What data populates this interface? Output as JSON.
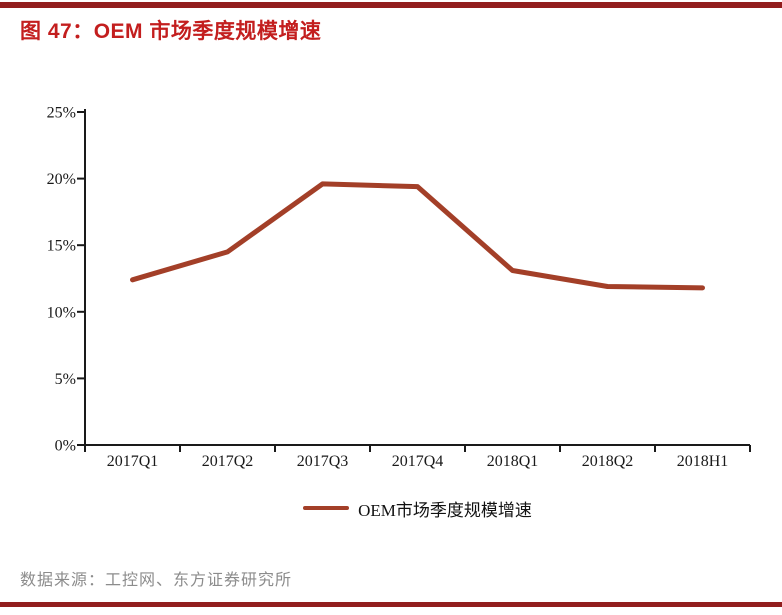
{
  "page": {
    "title": "图 47：OEM 市场季度规模增速",
    "source": "数据来源：工控网、东方证券研究所"
  },
  "colors": {
    "title_red": "#c31e1e",
    "divider_red": "#921e1e",
    "line": "#a33f28",
    "axis": "#1a1a1a",
    "source_gray": "#8c8c8c"
  },
  "chart_data": {
    "type": "line",
    "title": "图 47：OEM 市场季度规模增速",
    "categories": [
      "2017Q1",
      "2017Q2",
      "2017Q3",
      "2017Q4",
      "2018Q1",
      "2018Q2",
      "2018H1"
    ],
    "series": [
      {
        "name": "OEM市场季度规模增速",
        "values": [
          12.4,
          14.5,
          19.6,
          19.4,
          13.1,
          11.9,
          11.8
        ]
      }
    ],
    "unit": "%",
    "ylim": [
      0,
      25
    ],
    "ytick_step": 5,
    "ytick_labels": [
      "0%",
      "5%",
      "10%",
      "15%",
      "20%",
      "25%"
    ],
    "grid": false,
    "legend_position": "bottom",
    "legend_entries": [
      "OEM市场季度规模增速"
    ]
  }
}
